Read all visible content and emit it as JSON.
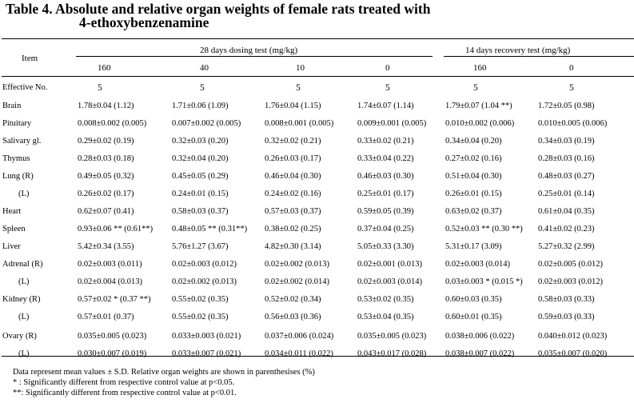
{
  "title": {
    "line1": "Table 4.  Absolute and relative organ weights of female rats treated with",
    "line2": "4-ethoxybenzenamine"
  },
  "header": {
    "item_label": "Item",
    "dosing_group": "28 days dosing test (mg/kg)",
    "recovery_group": "14 days recovery test (mg/kg)",
    "doses": [
      "160",
      "40",
      "10",
      "0",
      "160",
      "0"
    ]
  },
  "rows": [
    {
      "label": "Effective No.",
      "values": [
        "5",
        "5",
        "5",
        "5",
        "5",
        "5"
      ]
    },
    {
      "label": "Brain",
      "values": [
        "1.78±0.04 (1.12)",
        "1.71±0.06 (1.09)",
        "1.76±0.04 (1.15)",
        "1.74±0.07 (1.14)",
        "1.79±0.07 (1.04 **)",
        "1.72±0.05 (0.98)"
      ]
    },
    {
      "label": "Pituitary",
      "values": [
        "0.008±0.002 (0.005)",
        "0.007±0.002 (0.005)",
        "0.008±0.001 (0.005)",
        "0.009±0.001 (0.005)",
        "0.010±0.002 (0.006)",
        "0.010±0.005 (0.006)"
      ]
    },
    {
      "label": "Salivary gl.",
      "values": [
        "0.29±0.02 (0.19)",
        "0.32±0.03 (0.20)",
        "0.32±0.02 (0.21)",
        "0.33±0.02 (0.21)",
        "0.34±0.04 (0.20)",
        "0.34±0.03 (0.19)"
      ]
    },
    {
      "label": "Thymus",
      "values": [
        "0.28±0.03 (0.18)",
        "0.32±0.04 (0.20)",
        "0.26±0.03 (0.17)",
        "0.33±0.04 (0.22)",
        "0.27±0.02 (0.16)",
        "0.28±0.03 (0.16)"
      ]
    },
    {
      "label": "Lung (R)",
      "values": [
        "0.49±0.05 (0.32)",
        "0.45±0.05 (0.29)",
        "0.46±0.04 (0.30)",
        "0.46±0.03 (0.30)",
        "0.51±0.04 (0.30)",
        "0.48±0.03 (0.27)"
      ]
    },
    {
      "label": "(L)",
      "values": [
        "0.26±0.02 (0.17)",
        "0.24±0.01 (0.15)",
        "0.24±0.02 (0.16)",
        "0.25±0.01 (0.17)",
        "0.26±0.01 (0.15)",
        "0.25±0.01 (0.14)"
      ]
    },
    {
      "label": "Heart",
      "values": [
        "0.62±0.07 (0.41)",
        "0.58±0.03 (0.37)",
        "0.57±0.03 (0.37)",
        "0.59±0.05 (0.39)",
        "0.63±0.02 (0.37)",
        "0.61±0.04 (0.35)"
      ]
    },
    {
      "label": "Spleen",
      "values": [
        "0.93±0.06 ** (0.61**)",
        "0.48±0.05 ** (0.31**)",
        "0.38±0.02 (0.25)",
        "0.37±0.04 (0.25)",
        "0.52±0.03 ** (0.30 **)",
        "0.41±0.02 (0.23)"
      ]
    },
    {
      "label": "Liver",
      "values": [
        "5.42±0.34 (3.55)",
        "5.76±1.27 (3.67)",
        "4.82±0.30 (3.14)",
        "5.05±0.33 (3.30)",
        "5.31±0.17 (3.09)",
        "5.27±0.32 (2.99)"
      ]
    },
    {
      "label": "Adrenal (R)",
      "values": [
        "0.02±0.003 (0.011)",
        "0.02±0.003 (0.012)",
        "0.02±0.002 (0.013)",
        "0.02±0.001 (0.013)",
        "0.02±0.003 (0.014)",
        "0.02±0.005 (0.012)"
      ]
    },
    {
      "label": "(L)",
      "values": [
        "0.02±0.004 (0.013)",
        "0.02±0.002 (0.013)",
        "0.02±0.002 (0.014)",
        "0.02±0.003 (0.014)",
        "0.03±0.003 * (0.015 *)",
        "0.02±0.003 (0.012)"
      ]
    },
    {
      "label": "Kidney (R)",
      "values": [
        "0.57±0.02 * (0.37 **)",
        "0.55±0.02 (0.35)",
        "0.52±0.02 (0.34)",
        "0.53±0.02 (0.35)",
        "0.60±0.03 (0.35)",
        "0.58±0.03 (0.33)"
      ]
    },
    {
      "label": "(L)",
      "values": [
        "0.57±0.01 (0.37)",
        "0.55±0.02 (0.35)",
        "0.56±0.03 (0.36)",
        "0.53±0.04 (0.35)",
        "0.60±0.01 (0.35)",
        "0.59±0.03 (0.33)"
      ]
    },
    {
      "label": "Ovary (R)",
      "values": [
        "0.035±0.005 (0.023)",
        "0.033±0.003 (0.021)",
        "0.037±0.006 (0.024)",
        "0.035±0.005 (0.023)",
        "0.038±0.006 (0.022)",
        "0.040±0.012 (0.023)"
      ]
    },
    {
      "label": "(L)",
      "values": [
        "0.030±0.007 (0.019)",
        "0.033±0.007 (0.021)",
        "0.034±0.011 (0.022)",
        "0.043±0.017 (0.028)",
        "0.038±0.007 (0.022)",
        "0.035±0.007 (0.020)"
      ]
    }
  ],
  "footnotes": [
    "Data represent mean values ± S.D.   Relative organ weights are shown in parenthesises (%)",
    "* :  Significantly different from respective control value at p<0.05.",
    "**: Significantly different from respective control value at p<0.01."
  ]
}
